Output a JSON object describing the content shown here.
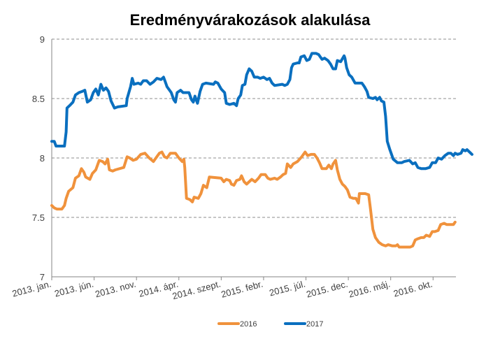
{
  "chart_data": {
    "type": "line",
    "title": "Eredményvárakozások alakulása",
    "xlabel": "",
    "ylabel": "",
    "ylim": [
      7,
      9
    ],
    "yticks": [
      "7",
      "7.5",
      "8",
      "8.5",
      "9"
    ],
    "ytick_values": [
      7,
      7.5,
      8,
      8.5,
      9
    ],
    "x_tick_labels": [
      "2013. jan.",
      "2013. jún.",
      "2013. nov.",
      "2014. ápr.",
      "2014. szept.",
      "2015. febr.",
      "2015. júl.",
      "2015. dec.",
      "2016. máj.",
      "2016. okt."
    ],
    "x_tick_months": [
      0,
      5,
      10,
      15,
      20,
      25,
      30,
      35,
      40,
      45
    ],
    "xlim_months": [
      0,
      47.7
    ],
    "grid": "horizontal-dashed",
    "legend_position": "bottom",
    "series": [
      {
        "name": "2016",
        "color": "#F0923C",
        "points": [
          [
            0,
            7.6
          ],
          [
            0.3,
            7.58
          ],
          [
            0.6,
            7.57
          ],
          [
            1.2,
            7.57
          ],
          [
            1.5,
            7.6
          ],
          [
            1.7,
            7.66
          ],
          [
            2.0,
            7.72
          ],
          [
            2.5,
            7.75
          ],
          [
            2.8,
            7.83
          ],
          [
            3.2,
            7.85
          ],
          [
            3.5,
            7.91
          ],
          [
            3.8,
            7.88
          ],
          [
            4.0,
            7.84
          ],
          [
            4.5,
            7.82
          ],
          [
            4.8,
            7.87
          ],
          [
            5.2,
            7.9
          ],
          [
            5.6,
            7.98
          ],
          [
            6.0,
            7.97
          ],
          [
            6.3,
            7.95
          ],
          [
            6.6,
            7.99
          ],
          [
            6.8,
            7.9
          ],
          [
            7.2,
            7.89
          ],
          [
            7.5,
            7.9
          ],
          [
            8.5,
            7.92
          ],
          [
            8.9,
            8.01
          ],
          [
            9.2,
            8.0
          ],
          [
            9.6,
            7.98
          ],
          [
            10.0,
            7.99
          ],
          [
            10.5,
            8.03
          ],
          [
            11.0,
            8.04
          ],
          [
            11.5,
            8.0
          ],
          [
            12.0,
            7.97
          ],
          [
            12.3,
            8.0
          ],
          [
            12.7,
            8.04
          ],
          [
            13.0,
            8.05
          ],
          [
            13.3,
            8.01
          ],
          [
            13.6,
            8.0
          ],
          [
            14.0,
            8.04
          ],
          [
            14.6,
            8.04
          ],
          [
            15.0,
            8.0
          ],
          [
            15.4,
            7.97
          ],
          [
            15.6,
            7.99
          ],
          [
            15.7,
            7.92
          ],
          [
            15.9,
            7.66
          ],
          [
            16.3,
            7.65
          ],
          [
            16.6,
            7.63
          ],
          [
            16.8,
            7.67
          ],
          [
            17.3,
            7.66
          ],
          [
            17.6,
            7.7
          ],
          [
            17.9,
            7.77
          ],
          [
            18.3,
            7.75
          ],
          [
            18.6,
            7.84
          ],
          [
            20.0,
            7.83
          ],
          [
            20.3,
            7.8
          ],
          [
            20.6,
            7.82
          ],
          [
            21.0,
            7.81
          ],
          [
            21.2,
            7.78
          ],
          [
            21.5,
            7.77
          ],
          [
            21.8,
            7.81
          ],
          [
            22.2,
            7.82
          ],
          [
            22.4,
            7.85
          ],
          [
            22.7,
            7.8
          ],
          [
            23.0,
            7.78
          ],
          [
            23.3,
            7.8
          ],
          [
            23.6,
            7.82
          ],
          [
            24.0,
            7.8
          ],
          [
            24.4,
            7.83
          ],
          [
            24.7,
            7.86
          ],
          [
            25.2,
            7.86
          ],
          [
            25.5,
            7.83
          ],
          [
            25.8,
            7.82
          ],
          [
            26.3,
            7.83
          ],
          [
            26.6,
            7.82
          ],
          [
            27.0,
            7.84
          ],
          [
            27.3,
            7.86
          ],
          [
            27.6,
            7.87
          ],
          [
            27.8,
            7.95
          ],
          [
            28.2,
            7.92
          ],
          [
            28.5,
            7.95
          ],
          [
            29.0,
            7.97
          ],
          [
            29.5,
            8.01
          ],
          [
            29.9,
            8.05
          ],
          [
            30.2,
            8.02
          ],
          [
            30.6,
            8.03
          ],
          [
            31.0,
            8.03
          ],
          [
            31.3,
            8.0
          ],
          [
            31.6,
            7.96
          ],
          [
            31.9,
            7.91
          ],
          [
            32.4,
            7.91
          ],
          [
            32.7,
            7.94
          ],
          [
            33.0,
            7.91
          ],
          [
            33.2,
            7.95
          ],
          [
            33.5,
            7.98
          ],
          [
            33.7,
            7.9
          ],
          [
            34.0,
            7.82
          ],
          [
            34.3,
            7.78
          ],
          [
            34.6,
            7.76
          ],
          [
            34.9,
            7.73
          ],
          [
            35.2,
            7.67
          ],
          [
            35.6,
            7.66
          ],
          [
            35.9,
            7.66
          ],
          [
            36.2,
            7.62
          ],
          [
            36.3,
            7.7
          ],
          [
            37.0,
            7.7
          ],
          [
            37.4,
            7.69
          ],
          [
            37.6,
            7.58
          ],
          [
            37.9,
            7.4
          ],
          [
            38.2,
            7.33
          ],
          [
            38.6,
            7.29
          ],
          [
            39.0,
            7.27
          ],
          [
            39.4,
            7.26
          ],
          [
            39.7,
            7.27
          ],
          [
            40.2,
            7.26
          ],
          [
            40.6,
            7.26
          ],
          [
            40.8,
            7.27
          ],
          [
            41.0,
            7.25
          ],
          [
            42.3,
            7.25
          ],
          [
            42.6,
            7.26
          ],
          [
            42.9,
            7.31
          ],
          [
            43.2,
            7.32
          ],
          [
            43.6,
            7.33
          ],
          [
            43.9,
            7.33
          ],
          [
            44.2,
            7.35
          ],
          [
            44.6,
            7.34
          ],
          [
            44.9,
            7.38
          ],
          [
            45.2,
            7.38
          ],
          [
            45.6,
            7.39
          ],
          [
            45.9,
            7.44
          ],
          [
            46.3,
            7.45
          ],
          [
            46.6,
            7.44
          ],
          [
            47.0,
            7.44
          ],
          [
            47.4,
            7.44
          ],
          [
            47.6,
            7.46
          ]
        ]
      },
      {
        "name": "2017",
        "color": "#0A6FBF",
        "points": [
          [
            0,
            8.14
          ],
          [
            0.3,
            8.14
          ],
          [
            0.5,
            8.1
          ],
          [
            1.5,
            8.1
          ],
          [
            1.7,
            8.22
          ],
          [
            1.8,
            8.42
          ],
          [
            2.1,
            8.44
          ],
          [
            2.5,
            8.47
          ],
          [
            2.8,
            8.53
          ],
          [
            3.2,
            8.55
          ],
          [
            3.6,
            8.56
          ],
          [
            3.9,
            8.57
          ],
          [
            4.2,
            8.47
          ],
          [
            4.6,
            8.49
          ],
          [
            4.9,
            8.55
          ],
          [
            5.2,
            8.58
          ],
          [
            5.5,
            8.53
          ],
          [
            5.8,
            8.62
          ],
          [
            6.1,
            8.57
          ],
          [
            6.4,
            8.59
          ],
          [
            6.7,
            8.56
          ],
          [
            7.0,
            8.48
          ],
          [
            7.4,
            8.42
          ],
          [
            7.8,
            8.43
          ],
          [
            8.8,
            8.44
          ],
          [
            8.9,
            8.5
          ],
          [
            9.3,
            8.6
          ],
          [
            9.5,
            8.67
          ],
          [
            9.7,
            8.62
          ],
          [
            10.2,
            8.63
          ],
          [
            10.5,
            8.62
          ],
          [
            10.8,
            8.65
          ],
          [
            11.2,
            8.65
          ],
          [
            11.6,
            8.62
          ],
          [
            12.0,
            8.64
          ],
          [
            12.4,
            8.67
          ],
          [
            12.9,
            8.66
          ],
          [
            13.2,
            8.68
          ],
          [
            13.4,
            8.64
          ],
          [
            13.6,
            8.6
          ],
          [
            14.1,
            8.55
          ],
          [
            14.4,
            8.49
          ],
          [
            14.6,
            8.47
          ],
          [
            14.8,
            8.55
          ],
          [
            15.2,
            8.57
          ],
          [
            15.5,
            8.55
          ],
          [
            16.2,
            8.55
          ],
          [
            16.5,
            8.49
          ],
          [
            16.7,
            8.47
          ],
          [
            16.9,
            8.52
          ],
          [
            17.2,
            8.46
          ],
          [
            17.5,
            8.56
          ],
          [
            17.8,
            8.62
          ],
          [
            18.2,
            8.63
          ],
          [
            19.1,
            8.62
          ],
          [
            19.3,
            8.64
          ],
          [
            19.6,
            8.63
          ],
          [
            20.0,
            8.58
          ],
          [
            20.4,
            8.55
          ],
          [
            20.6,
            8.46
          ],
          [
            21.0,
            8.45
          ],
          [
            21.5,
            8.46
          ],
          [
            21.8,
            8.44
          ],
          [
            22.0,
            8.5
          ],
          [
            22.3,
            8.53
          ],
          [
            22.5,
            8.61
          ],
          [
            22.8,
            8.62
          ],
          [
            23.0,
            8.7
          ],
          [
            23.3,
            8.75
          ],
          [
            23.6,
            8.73
          ],
          [
            23.9,
            8.68
          ],
          [
            24.3,
            8.68
          ],
          [
            24.6,
            8.67
          ],
          [
            25.0,
            8.68
          ],
          [
            25.4,
            8.66
          ],
          [
            25.7,
            8.67
          ],
          [
            26.0,
            8.63
          ],
          [
            26.3,
            8.61
          ],
          [
            27.2,
            8.62
          ],
          [
            27.5,
            8.61
          ],
          [
            27.8,
            8.62
          ],
          [
            28.1,
            8.66
          ],
          [
            28.3,
            8.76
          ],
          [
            28.5,
            8.79
          ],
          [
            29.0,
            8.8
          ],
          [
            29.2,
            8.8
          ],
          [
            29.4,
            8.85
          ],
          [
            29.8,
            8.86
          ],
          [
            30.1,
            8.82
          ],
          [
            30.4,
            8.83
          ],
          [
            30.7,
            8.88
          ],
          [
            31.2,
            8.88
          ],
          [
            31.5,
            8.87
          ],
          [
            31.9,
            8.83
          ],
          [
            32.2,
            8.84
          ],
          [
            32.6,
            8.82
          ],
          [
            32.9,
            8.79
          ],
          [
            33.2,
            8.75
          ],
          [
            33.5,
            8.75
          ],
          [
            33.7,
            8.82
          ],
          [
            34.1,
            8.81
          ],
          [
            34.5,
            8.86
          ],
          [
            34.6,
            8.84
          ],
          [
            34.8,
            8.76
          ],
          [
            35.1,
            8.7
          ],
          [
            35.4,
            8.68
          ],
          [
            35.8,
            8.63
          ],
          [
            36.6,
            8.63
          ],
          [
            36.9,
            8.6
          ],
          [
            37.2,
            8.56
          ],
          [
            37.4,
            8.51
          ],
          [
            37.9,
            8.5
          ],
          [
            38.2,
            8.51
          ],
          [
            38.4,
            8.49
          ],
          [
            38.7,
            8.51
          ],
          [
            38.9,
            8.48
          ],
          [
            39.2,
            8.47
          ],
          [
            39.4,
            8.35
          ],
          [
            39.6,
            8.14
          ],
          [
            39.9,
            8.07
          ],
          [
            40.3,
            7.99
          ],
          [
            40.8,
            7.96
          ],
          [
            41.3,
            7.96
          ],
          [
            41.6,
            7.97
          ],
          [
            42.2,
            7.98
          ],
          [
            42.6,
            7.95
          ],
          [
            42.9,
            7.96
          ],
          [
            43.2,
            7.92
          ],
          [
            43.6,
            7.91
          ],
          [
            44.1,
            7.91
          ],
          [
            44.6,
            7.92
          ],
          [
            44.9,
            7.96
          ],
          [
            45.3,
            7.96
          ],
          [
            45.6,
            8.0
          ],
          [
            46.0,
            7.99
          ],
          [
            46.4,
            8.02
          ],
          [
            46.8,
            8.04
          ],
          [
            47.1,
            8.04
          ],
          [
            47.4,
            8.02
          ],
          [
            47.6,
            8.04
          ],
          [
            47.9,
            8.03
          ],
          [
            48.3,
            8.04
          ],
          [
            48.5,
            8.07
          ],
          [
            48.8,
            8.06
          ],
          [
            49.0,
            8.07
          ],
          [
            49.3,
            8.05
          ],
          [
            49.6,
            8.03
          ]
        ]
      }
    ],
    "legend": [
      "2016",
      "2017"
    ]
  }
}
